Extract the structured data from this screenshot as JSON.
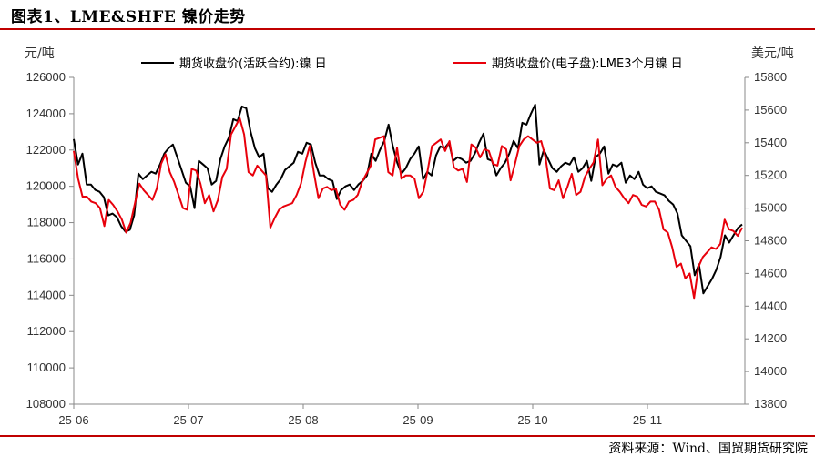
{
  "title": "图表1、LME&SHFE 镍价走势",
  "source": "资料来源：Wind、国贸期货研究院",
  "colors": {
    "shfe": "#000000",
    "lme": "#e8000b",
    "rule": "#c00000"
  },
  "chart_data": {
    "type": "line",
    "left_axis_label": "元/吨",
    "right_axis_label": "美元/吨",
    "left_ylim": [
      108000,
      126000
    ],
    "left_ticks": [
      108000,
      110000,
      112000,
      114000,
      116000,
      118000,
      120000,
      122000,
      124000,
      126000
    ],
    "right_ylim": [
      13800,
      15800
    ],
    "right_ticks": [
      13800,
      14000,
      14200,
      14400,
      14600,
      14800,
      15000,
      15200,
      15400,
      15600,
      15800
    ],
    "x_ticks": [
      "25-06",
      "25-07",
      "25-08",
      "25-09",
      "25-10",
      "25-11"
    ],
    "legend_position": "top",
    "series": [
      {
        "name": "期货收盘价(活跃合约):镍  日",
        "axis": "left",
        "color": "#000000",
        "values": [
          122600,
          121200,
          121800,
          120100,
          120100,
          119800,
          119700,
          119400,
          118400,
          118500,
          118300,
          117800,
          117500,
          117600,
          118400,
          120700,
          120400,
          120600,
          120800,
          120700,
          121200,
          121800,
          122100,
          122300,
          121600,
          120900,
          120200,
          120000,
          118800,
          121400,
          121200,
          121000,
          120100,
          120300,
          121500,
          122200,
          122700,
          123700,
          123600,
          124400,
          124300,
          123000,
          122100,
          121600,
          121800,
          119900,
          119700,
          120100,
          120400,
          120900,
          121100,
          121300,
          121900,
          121800,
          122400,
          122300,
          121300,
          120600,
          120600,
          120400,
          120300,
          119300,
          119800,
          120000,
          120100,
          119800,
          120100,
          120300,
          120600,
          121800,
          121400,
          122000,
          122500,
          123400,
          122200,
          121300,
          120700,
          121000,
          121500,
          121800,
          122200,
          120400,
          120800,
          120600,
          121700,
          122200,
          122100,
          122400,
          121400,
          121600,
          121500,
          121300,
          121400,
          121800,
          122400,
          122900,
          121500,
          121400,
          120600,
          121000,
          121300,
          121800,
          122500,
          122100,
          123500,
          123400,
          124000,
          124500,
          121200,
          122000,
          121500,
          121000,
          120800,
          121100,
          121300,
          121200,
          121600,
          120800,
          121000,
          121400,
          120300,
          121600,
          121800,
          122200,
          120700,
          121200,
          121100,
          121300,
          120200,
          120600,
          120400,
          120800,
          120100,
          119900,
          120000,
          119700,
          119600,
          119500,
          119200,
          119000,
          118500,
          117300,
          117000,
          116700,
          115100,
          115700,
          114100,
          114500,
          114900,
          115400,
          116100,
          117300,
          116900,
          117300,
          117700,
          117900
        ]
      },
      {
        "name": "期货收盘价(电子盘):LME3个月镍  日",
        "axis": "right",
        "color": "#e8000b",
        "values": [
          15350,
          15180,
          15070,
          15070,
          15040,
          15030,
          15000,
          14890,
          15050,
          15020,
          14980,
          14930,
          14850,
          14910,
          15030,
          15150,
          15110,
          15080,
          15050,
          15120,
          15270,
          15330,
          15220,
          15160,
          15080,
          15000,
          14990,
          15240,
          15230,
          15150,
          15030,
          15080,
          14980,
          15050,
          15190,
          15240,
          15450,
          15500,
          15550,
          15450,
          15220,
          15200,
          15260,
          15230,
          15200,
          14880,
          14940,
          14990,
          15010,
          15020,
          15030,
          15080,
          15150,
          15280,
          15380,
          15210,
          15060,
          15120,
          15130,
          15110,
          15120,
          15020,
          14990,
          15040,
          15050,
          15080,
          15160,
          15210,
          15260,
          15420,
          15430,
          15440,
          15220,
          15200,
          15370,
          15180,
          15200,
          15200,
          15180,
          15060,
          15100,
          15230,
          15380,
          15400,
          15420,
          15350,
          15410,
          15250,
          15230,
          15240,
          15160,
          15390,
          15370,
          15310,
          15360,
          15350,
          15270,
          15260,
          15380,
          15360,
          15170,
          15270,
          15380,
          15420,
          15440,
          15420,
          15400,
          15410,
          15310,
          15120,
          15110,
          15170,
          15060,
          15130,
          15210,
          15080,
          15100,
          15190,
          15240,
          15280,
          15420,
          15140,
          15180,
          15200,
          15130,
          15100,
          15060,
          15030,
          15080,
          15070,
          15020,
          15010,
          15040,
          15040,
          14990,
          14870,
          14850,
          14760,
          14640,
          14660,
          14570,
          14600,
          14450,
          14640,
          14700,
          14730,
          14760,
          14750,
          14780,
          14930,
          14870,
          14860,
          14830,
          14880
        ]
      }
    ]
  }
}
